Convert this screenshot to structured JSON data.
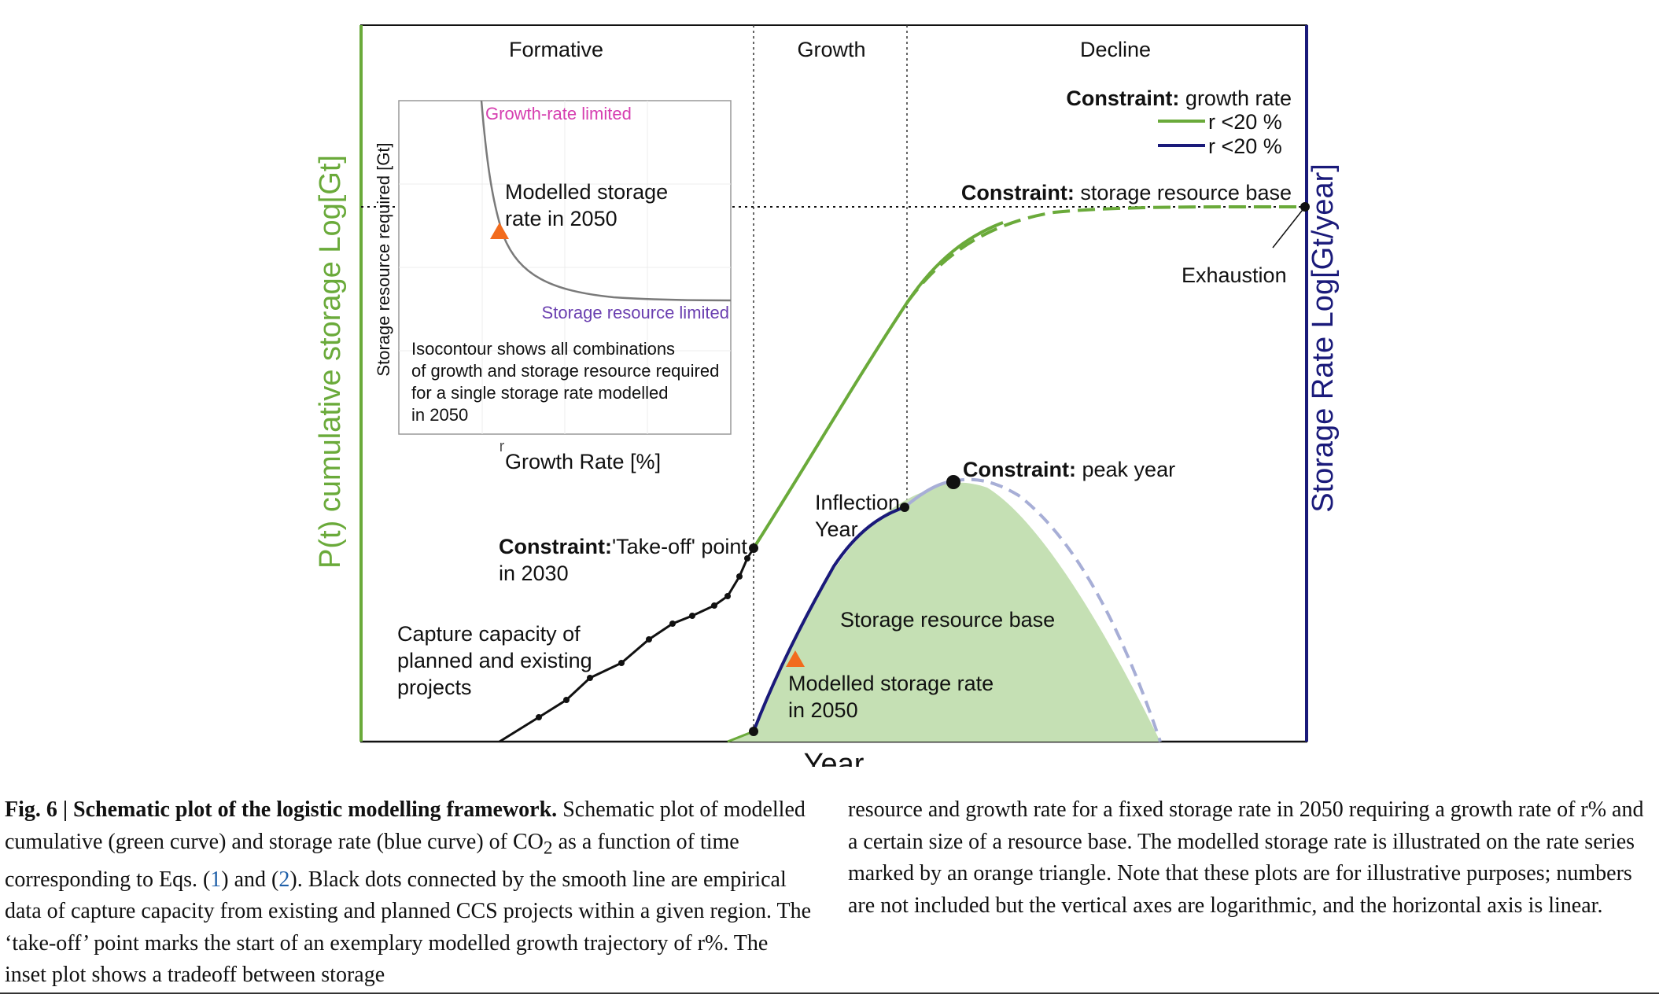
{
  "phases": {
    "formative": "Formative",
    "growth": "Growth",
    "decline": "Decline"
  },
  "axes": {
    "left_label": "P(t) cumulative storage Log[Gt]",
    "right_label": "Storage Rate Log[Gt/year]",
    "x_label": "Year"
  },
  "legend": {
    "title_bold": "Constraint:",
    "title_rest": " growth rate",
    "items": [
      {
        "label": "r <20 %",
        "color": "#6aaa3a"
      },
      {
        "label": "r <20 %",
        "color": "#1a1a7a"
      }
    ]
  },
  "annotations": {
    "storage_base_bold": "Constraint:",
    "storage_base_rest": " storage resource base",
    "exhaustion": "Exhaustion",
    "peak_bold": "Constraint:",
    "peak_rest": " peak year",
    "inflection_line1": "Inflection",
    "inflection_line2": "Year",
    "takeoff_bold": "Constraint:",
    "takeoff_rest": "'Take-off' point",
    "takeoff_line2": "in 2030",
    "capture_line1": "Capture capacity of",
    "capture_line2": "planned and existing",
    "capture_line3": "projects",
    "resource_base": "Storage resource base",
    "modelled_line1": "Modelled storage rate",
    "modelled_line2": "in 2050"
  },
  "inset": {
    "y_label": "Storage resource required [Gt]",
    "x_label": "Growth Rate [%]",
    "x_tick": "r",
    "growth_limited": "Growth-rate limited",
    "storage_limited": "Storage resource limited",
    "modelled_line1": "Modelled storage",
    "modelled_line2": "rate in 2050",
    "iso_line1": "Isocontour shows all combinations",
    "iso_line2": "of growth and storage resource required",
    "iso_line3": "for a single storage rate modelled",
    "iso_line4": "in  2050"
  },
  "colors": {
    "cumulative": "#6aaa3a",
    "rate": "#1a1a7a",
    "area_fill": "#c5e0b4",
    "marker": "#f26b1d",
    "growth_limited_text": "#d63fb0",
    "storage_limited_text": "#6a3fb0"
  },
  "caption": {
    "fig_label": "Fig. 6 | Schematic plot of the logistic modelling framework.",
    "col1_a": " Schematic plot of modelled cumulative (green curve) and storage rate (blue curve) of CO",
    "co2_sub": "2",
    "col1_b": " as a function of time corresponding to Eqs. (",
    "ref1": "1",
    "col1_c": ") and (",
    "ref2": "2",
    "col1_d": "). Black dots connected by the smooth line are empirical data of capture capacity from existing and planned CCS projects within a given region. The ‘take-off’ point marks the start of an exemplary modelled growth trajectory of r%. The inset plot shows a tradeoff between storage",
    "col2": "resource and growth rate for a fixed storage rate in 2050 requiring a growth rate of r% and a certain size of a resource base. The modelled storage rate is illustrated on the rate series marked by an orange triangle. Note that these plots are for illustrative purposes; numbers are not included but the vertical axes are logarithmic, and the horizontal axis is linear."
  }
}
